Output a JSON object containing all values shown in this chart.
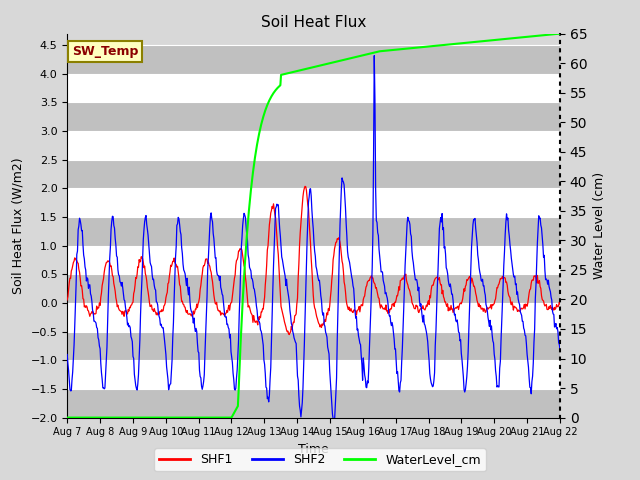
{
  "title": "Soil Heat Flux",
  "xlabel": "Time",
  "ylabel_left": "Soil Heat Flux (W/m2)",
  "ylabel_right": "Water Level (cm)",
  "ylim_left": [
    -2.0,
    4.7
  ],
  "ylim_right": [
    0,
    65
  ],
  "yticks_left": [
    -2.0,
    -1.5,
    -1.0,
    -0.5,
    0.0,
    0.5,
    1.0,
    1.5,
    2.0,
    2.5,
    3.0,
    3.5,
    4.0,
    4.5
  ],
  "yticks_right": [
    0,
    5,
    10,
    15,
    20,
    25,
    30,
    35,
    40,
    45,
    50,
    55,
    60,
    65
  ],
  "xtick_labels": [
    "Aug 7",
    "Aug 8",
    "Aug 9",
    "Aug 10",
    "Aug 11",
    "Aug 12",
    "Aug 13",
    "Aug 14",
    "Aug 15",
    "Aug 16",
    "Aug 17",
    "Aug 18",
    "Aug 19",
    "Aug 20",
    "Aug 21",
    "Aug 22"
  ],
  "annotation_text": "SW_Temp",
  "annotation_color": "#8B0000",
  "annotation_bg": "#FFFFC0",
  "annotation_border": "#8B8000",
  "color_shf1": "#FF0000",
  "color_shf2": "#0000FF",
  "color_water": "#00FF00",
  "legend_labels": [
    "SHF1",
    "SHF2",
    "WaterLevel_cm"
  ],
  "bg_color": "#D8D8D8",
  "plot_bg": "#D8D8D8",
  "grid_color": "#FFFFFF",
  "band_color": "#C0C0C0"
}
